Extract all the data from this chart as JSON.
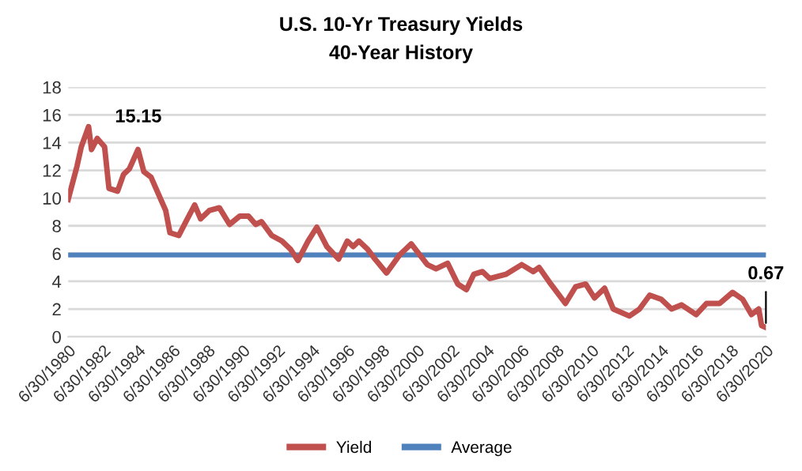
{
  "chart_data": {
    "type": "line",
    "title": "U.S. 10-Yr Treasury Yields",
    "subtitle": "40-Year History",
    "series": [
      {
        "name": "Yield",
        "color": "#c0504d",
        "x": [
          "1980-06-30",
          "1981-01",
          "1981-04",
          "1981-09",
          "1981-11",
          "1982-03",
          "1982-08",
          "1982-11",
          "1983-05",
          "1983-09",
          "1984-01",
          "1984-07",
          "1984-11",
          "1985-04",
          "1985-09",
          "1986-02",
          "1986-05",
          "1986-11",
          "1987-05",
          "1987-10",
          "1988-02",
          "1988-08",
          "1989-03",
          "1989-10",
          "1990-05",
          "1990-11",
          "1991-04",
          "1991-08",
          "1992-03",
          "1992-10",
          "1993-04",
          "1993-09",
          "1994-04",
          "1994-10",
          "1995-05",
          "1996-01",
          "1996-07",
          "1996-11",
          "1997-03",
          "1997-09",
          "1998-02",
          "1998-10",
          "1999-07",
          "2000-03",
          "2001-02",
          "2001-08",
          "2002-04",
          "2002-11",
          "2003-05",
          "2003-10",
          "2004-04",
          "2004-09",
          "2005-08",
          "2006-07",
          "2007-03",
          "2007-07",
          "2008-03",
          "2009-01",
          "2009-08",
          "2010-03",
          "2010-09",
          "2011-04",
          "2011-10",
          "2012-09",
          "2013-04",
          "2013-11",
          "2014-07",
          "2015-02",
          "2015-09",
          "2016-07",
          "2017-02",
          "2017-11",
          "2018-08",
          "2019-03",
          "2019-09",
          "2020-02",
          "2020-04",
          "2020-06-30"
        ],
        "values": [
          9.9,
          12.3,
          13.7,
          15.15,
          13.5,
          14.3,
          13.7,
          10.7,
          10.5,
          11.7,
          12.1,
          13.5,
          11.9,
          11.5,
          10.3,
          9.1,
          7.5,
          7.3,
          8.5,
          9.5,
          8.5,
          9.1,
          9.3,
          8.1,
          8.7,
          8.7,
          8.1,
          8.3,
          7.3,
          6.9,
          6.3,
          5.5,
          6.9,
          7.9,
          6.5,
          5.6,
          6.9,
          6.5,
          6.9,
          6.3,
          5.6,
          4.6,
          5.9,
          6.7,
          5.2,
          4.9,
          5.3,
          3.8,
          3.4,
          4.5,
          4.7,
          4.2,
          4.5,
          5.2,
          4.7,
          5.0,
          3.8,
          2.4,
          3.6,
          3.8,
          2.8,
          3.5,
          2.0,
          1.5,
          2.0,
          3.0,
          2.7,
          2.0,
          2.3,
          1.6,
          2.4,
          2.4,
          3.2,
          2.7,
          1.6,
          2.0,
          0.8,
          0.67
        ]
      },
      {
        "name": "Average",
        "color": "#4f81bd",
        "x": [
          "1980-06-30",
          "2020-06-30"
        ],
        "values": [
          5.9,
          5.9
        ]
      }
    ],
    "xlim": [
      "1980-06-30",
      "2020-06-30"
    ],
    "xticks": [
      {
        "value": "1980-06-30",
        "label": "6/30/1980"
      },
      {
        "value": "1982-06-30",
        "label": "6/30/1982"
      },
      {
        "value": "1984-06-30",
        "label": "6/30/1984"
      },
      {
        "value": "1986-06-30",
        "label": "6/30/1986"
      },
      {
        "value": "1988-06-30",
        "label": "6/30/1988"
      },
      {
        "value": "1990-06-30",
        "label": "6/30/1990"
      },
      {
        "value": "1992-06-30",
        "label": "6/30/1992"
      },
      {
        "value": "1994-06-30",
        "label": "6/30/1994"
      },
      {
        "value": "1996-06-30",
        "label": "6/30/1996"
      },
      {
        "value": "1998-06-30",
        "label": "6/30/1998"
      },
      {
        "value": "2000-06-30",
        "label": "6/30/2000"
      },
      {
        "value": "2002-06-30",
        "label": "6/30/2002"
      },
      {
        "value": "2004-06-30",
        "label": "6/30/2004"
      },
      {
        "value": "2006-06-30",
        "label": "6/30/2006"
      },
      {
        "value": "2008-06-30",
        "label": "6/30/2008"
      },
      {
        "value": "2010-06-30",
        "label": "6/30/2010"
      },
      {
        "value": "2012-06-30",
        "label": "6/30/2012"
      },
      {
        "value": "2014-06-30",
        "label": "6/30/2014"
      },
      {
        "value": "2016-06-30",
        "label": "6/30/2016"
      },
      {
        "value": "2018-06-30",
        "label": "6/30/2018"
      },
      {
        "value": "2020-06-30",
        "label": "6/30/2020"
      }
    ],
    "ylim": [
      0,
      18
    ],
    "yticks": [
      0,
      2,
      4,
      6,
      8,
      10,
      12,
      14,
      16,
      18
    ],
    "annotations": [
      {
        "text": "15.15",
        "x": "1981-09",
        "y": 15.15
      },
      {
        "text": "0.67",
        "x": "2020-06-30",
        "y": 0.67
      }
    ],
    "grid": "y",
    "legend": "bottom",
    "marker": "none",
    "line_style": "solid"
  }
}
